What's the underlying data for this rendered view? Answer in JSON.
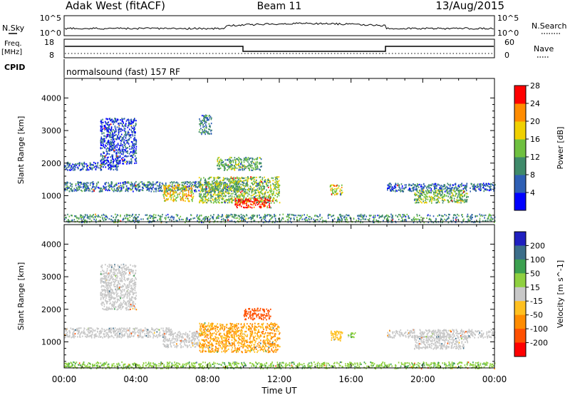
{
  "header": {
    "station": "Adak West (fitACF)",
    "beam": "Beam 11",
    "date": "13/Aug/2015"
  },
  "nsky_panel": {
    "left_label": "N.Sky",
    "left_top": "10^5",
    "left_bottom": "10^0",
    "right_top": "10^5",
    "right_bottom": "10^0",
    "right_label": "N.Search"
  },
  "freq_panel": {
    "left_label_1": "Freq.",
    "left_label_2": "[MHz]",
    "left_top": "18",
    "left_bottom": "8",
    "right_top": "60",
    "right_bottom": "0",
    "right_label": "Nave"
  },
  "cpid_panel": {
    "left_label": "CPID",
    "program": "normalsound (fast) 157 RF"
  },
  "chart_data": [
    {
      "type": "heatmap",
      "name": "power",
      "ylabel": "Slant Range [km]",
      "xlabel": "Time UT",
      "x_ticks": [
        "00:00",
        "04:00",
        "08:00",
        "12:00",
        "16:00",
        "20:00",
        "00:00"
      ],
      "y_ticks": [
        "1000",
        "2000",
        "3000",
        "4000"
      ],
      "ylim": [
        200,
        4600
      ],
      "xlim_hours": [
        0,
        24
      ],
      "colorbar": {
        "label": "Power [dB]",
        "ticks": [
          "4",
          "8",
          "12",
          "16",
          "20",
          "24",
          "28"
        ],
        "colors": [
          "#0000ff",
          "#2e5fb4",
          "#3f8a6a",
          "#6fc040",
          "#f0d000",
          "#ff8c00",
          "#ff0000"
        ]
      },
      "echo_regions": [
        {
          "t_start": 0.0,
          "t_end": 10.0,
          "range_start": 1150,
          "range_end": 1450,
          "level": 8
        },
        {
          "t_start": 0.0,
          "t_end": 3.0,
          "range_start": 1800,
          "range_end": 2050,
          "level": 6
        },
        {
          "t_start": 2.0,
          "t_end": 4.0,
          "range_start": 2000,
          "range_end": 3400,
          "level": 5
        },
        {
          "t_start": 5.5,
          "t_end": 7.2,
          "range_start": 850,
          "range_end": 1350,
          "level": 18
        },
        {
          "t_start": 7.5,
          "t_end": 8.2,
          "range_start": 2900,
          "range_end": 3500,
          "level": 9
        },
        {
          "t_start": 7.5,
          "t_end": 12.0,
          "range_start": 800,
          "range_end": 1600,
          "level": 14
        },
        {
          "t_start": 9.5,
          "t_end": 11.5,
          "range_start": 650,
          "range_end": 950,
          "level": 27
        },
        {
          "t_start": 8.5,
          "t_end": 11.0,
          "range_start": 1800,
          "range_end": 2200,
          "level": 12
        },
        {
          "t_start": 14.8,
          "t_end": 15.5,
          "range_start": 1050,
          "range_end": 1350,
          "level": 17
        },
        {
          "t_start": 18.0,
          "t_end": 24.0,
          "range_start": 1150,
          "range_end": 1400,
          "level": 7
        },
        {
          "t_start": 19.5,
          "t_end": 22.5,
          "range_start": 800,
          "range_end": 1200,
          "level": 13
        },
        {
          "t_start": 0.0,
          "t_end": 24.0,
          "range_start": 200,
          "range_end": 450,
          "level": 10
        }
      ]
    },
    {
      "type": "heatmap",
      "name": "velocity",
      "ylabel": "Slant Range [km]",
      "xlabel": "Time UT",
      "x_ticks": [
        "00:00",
        "04:00",
        "08:00",
        "12:00",
        "16:00",
        "20:00",
        "00:00"
      ],
      "y_ticks": [
        "1000",
        "2000",
        "3000",
        "4000"
      ],
      "ylim": [
        200,
        4600
      ],
      "xlim_hours": [
        0,
        24
      ],
      "colorbar": {
        "label": "Velocity [m s^-1]",
        "ticks": [
          "200",
          "100",
          "50",
          "15",
          "-15",
          "-50",
          "-100",
          "-200"
        ],
        "colors": [
          "#2020c0",
          "#3c6e8a",
          "#3ca050",
          "#8fd040",
          "#c8c8c8",
          "#ffc020",
          "#ff8c00",
          "#ff5000",
          "#ff0000"
        ]
      },
      "echo_regions": [
        {
          "t_start": 0.0,
          "t_end": 6.0,
          "range_start": 1150,
          "range_end": 1450,
          "level": 0
        },
        {
          "t_start": 2.0,
          "t_end": 4.0,
          "range_start": 2000,
          "range_end": 3400,
          "level": 0
        },
        {
          "t_start": 5.5,
          "t_end": 7.5,
          "range_start": 850,
          "range_end": 1350,
          "level": 0
        },
        {
          "t_start": 7.5,
          "t_end": 12.0,
          "range_start": 700,
          "range_end": 1600,
          "level": -50
        },
        {
          "t_start": 10.0,
          "t_end": 11.5,
          "range_start": 1700,
          "range_end": 2050,
          "level": -150
        },
        {
          "t_start": 14.8,
          "t_end": 15.5,
          "range_start": 1050,
          "range_end": 1350,
          "level": -30
        },
        {
          "t_start": 15.8,
          "t_end": 16.3,
          "range_start": 1150,
          "range_end": 1300,
          "level": 40
        },
        {
          "t_start": 18.0,
          "t_end": 24.0,
          "range_start": 1150,
          "range_end": 1400,
          "level": 0
        },
        {
          "t_start": 19.5,
          "t_end": 22.5,
          "range_start": 800,
          "range_end": 1200,
          "level": 0
        },
        {
          "t_start": 0.0,
          "t_end": 24.0,
          "range_start": 200,
          "range_end": 400,
          "level": 40
        }
      ]
    }
  ]
}
